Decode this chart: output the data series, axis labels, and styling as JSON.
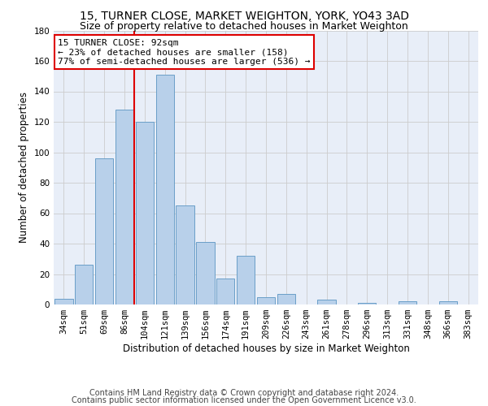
{
  "title": "15, TURNER CLOSE, MARKET WEIGHTON, YORK, YO43 3AD",
  "subtitle": "Size of property relative to detached houses in Market Weighton",
  "xlabel": "Distribution of detached houses by size in Market Weighton",
  "ylabel": "Number of detached properties",
  "categories": [
    "34sqm",
    "51sqm",
    "69sqm",
    "86sqm",
    "104sqm",
    "121sqm",
    "139sqm",
    "156sqm",
    "174sqm",
    "191sqm",
    "209sqm",
    "226sqm",
    "243sqm",
    "261sqm",
    "278sqm",
    "296sqm",
    "313sqm",
    "331sqm",
    "348sqm",
    "366sqm",
    "383sqm"
  ],
  "values": [
    4,
    26,
    96,
    128,
    120,
    151,
    65,
    41,
    17,
    32,
    5,
    7,
    0,
    3,
    0,
    1,
    0,
    2,
    0,
    2,
    0
  ],
  "bar_color": "#b8d0ea",
  "bar_edge_color": "#6a9fc8",
  "grid_color": "#cccccc",
  "property_line_x": 3.5,
  "annotation_title": "15 TURNER CLOSE: 92sqm",
  "annotation_line1": "← 23% of detached houses are smaller (158)",
  "annotation_line2": "77% of semi-detached houses are larger (536) →",
  "annotation_box_color": "#ffffff",
  "annotation_border_color": "#dd0000",
  "vline_color": "#dd0000",
  "ylim": [
    0,
    180
  ],
  "yticks": [
    0,
    20,
    40,
    60,
    80,
    100,
    120,
    140,
    160,
    180
  ],
  "footer_line1": "Contains HM Land Registry data © Crown copyright and database right 2024.",
  "footer_line2": "Contains public sector information licensed under the Open Government Licence v3.0.",
  "background_color": "#e8eef8",
  "title_fontsize": 10,
  "subtitle_fontsize": 9,
  "axis_label_fontsize": 8.5,
  "tick_fontsize": 7.5,
  "footer_fontsize": 7,
  "annotation_fontsize": 8
}
